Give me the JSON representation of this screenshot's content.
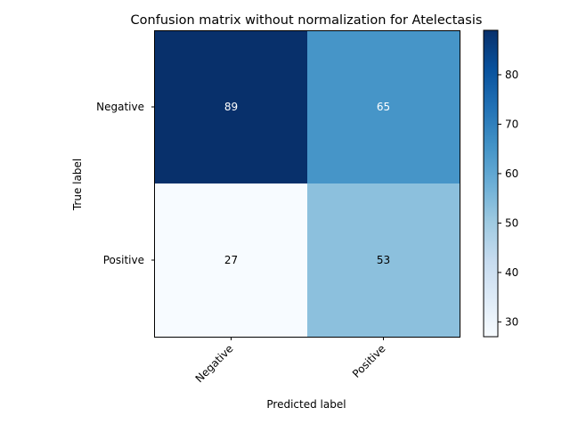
{
  "chart_data": {
    "type": "heatmap",
    "title": "Confusion matrix without normalization for Atelectasis",
    "xlabel": "Predicted label",
    "ylabel": "True label",
    "x_categories": [
      "Negative",
      "Positive"
    ],
    "y_categories": [
      "Negative",
      "Positive"
    ],
    "values": [
      [
        89,
        65
      ],
      [
        27,
        53
      ]
    ],
    "colormap": "Blues",
    "colorbar": {
      "ticks": [
        30,
        40,
        50,
        60,
        70,
        80
      ],
      "range": [
        27,
        89
      ]
    },
    "grid": false
  }
}
